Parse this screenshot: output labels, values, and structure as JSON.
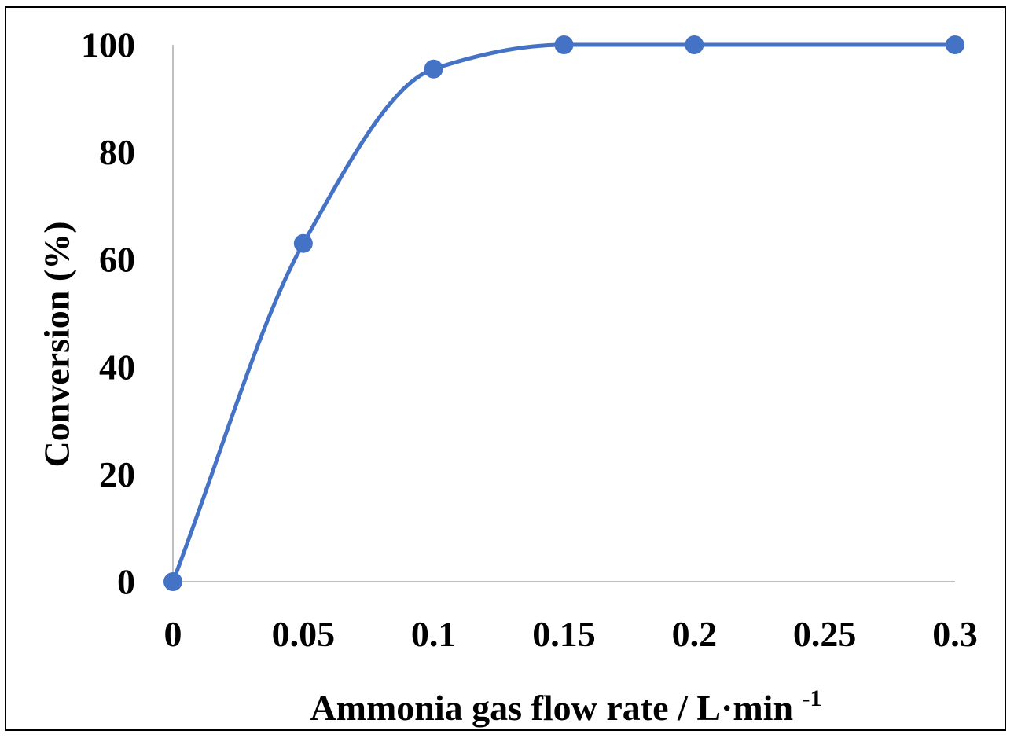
{
  "chart_data": {
    "type": "line",
    "title": "",
    "xlabel": "Ammonia gas flow rate / L·min",
    "xlabel_superscript": "-1",
    "ylabel": "Conversion (%)",
    "x": [
      0,
      0.05,
      0.1,
      0.15,
      0.2,
      0.3
    ],
    "series": [
      {
        "values": [
          0,
          63,
          95.5,
          100,
          100,
          100
        ],
        "color": "#4472C4"
      }
    ],
    "x_categories": [
      "0",
      "0.05",
      "0.1",
      "0.15",
      "0.2",
      "0.25",
      "0.3"
    ],
    "y_ticks": [
      "0",
      "20",
      "40",
      "60",
      "80",
      "100"
    ],
    "xlim": [
      0,
      0.3
    ],
    "ylim": [
      0,
      100
    ],
    "grid": false,
    "smooth": true,
    "marker": "circle"
  }
}
